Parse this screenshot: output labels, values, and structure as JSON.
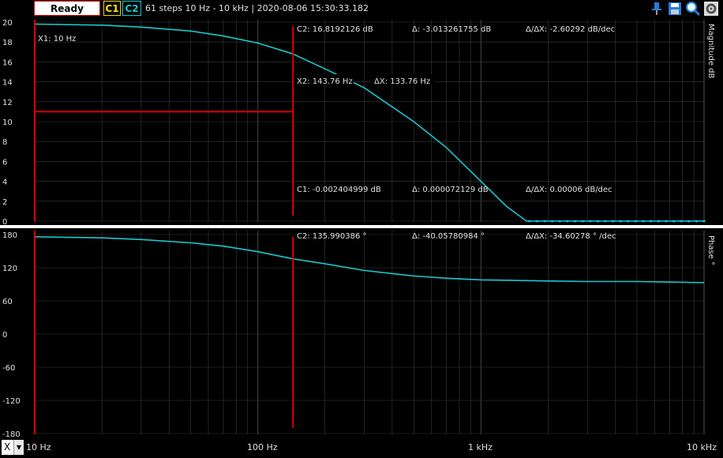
{
  "toolbar": {
    "status_label": "Ready",
    "c1_label": "C1",
    "c2_label": "C2",
    "info": "61 steps  10 Hz - 10 kHz | 2020-08-06 15:30:33.182",
    "icons": [
      "pin-icon",
      "save-icon",
      "zoom-icon",
      "settings-icon"
    ]
  },
  "magnitude_panel": {
    "axis_title": "Magnitude dB",
    "x1_label": "X1: 10 Hz",
    "x2_label": "X2: 143.76 Hz",
    "dx_label": "ΔX: 133.76 Hz",
    "c2_value": "C2: 16.8192126 dB",
    "c2_delta": "Δ: -3.013261755 dB",
    "c2_slope": "Δ/ΔX: -2.60292 dB/dec",
    "c1_value": "C1: -0.002404999 dB",
    "c1_delta": "Δ: 0.000072129 dB",
    "c1_slope": "Δ/ΔX: 0.00006 dB/dec",
    "y_ticks": [
      "20",
      "18",
      "16",
      "14",
      "12",
      "10",
      "8",
      "6",
      "4",
      "2",
      "0"
    ]
  },
  "phase_panel": {
    "axis_title": "Phase °",
    "c2_value": "C2: 135.990386 °",
    "c2_delta": "Δ: -40.05780984 °",
    "c2_slope": "Δ/ΔX: -34.60278 ° /dec",
    "y_ticks": [
      "180",
      "120",
      "60",
      "0",
      "-60",
      "-120",
      "-180"
    ]
  },
  "x_axis": {
    "selector_label": "X",
    "tick_labels": [
      "10 Hz",
      "100 Hz",
      "1 kHz",
      "10 kHz"
    ]
  },
  "colors": {
    "trace": "#19c8d0",
    "cursor": "#e00000",
    "c1": "#ffe800",
    "grid": "#3a3a3a"
  },
  "chart_data": [
    {
      "type": "line",
      "title": "",
      "ylabel": "Magnitude dB",
      "x_scale": "log",
      "xlim": [
        10,
        10000
      ],
      "ylim": [
        0,
        20
      ],
      "grid": true,
      "cursors": {
        "X1": 10,
        "X2": 143.76
      },
      "series": [
        {
          "name": "",
          "x": [
            10,
            20,
            30,
            50,
            70,
            100,
            143.76,
            200,
            300,
            500,
            700,
            1000,
            1300,
            1600,
            1650,
            2000,
            3000,
            5000,
            7000,
            10000
          ],
          "y": [
            19.8,
            19.7,
            19.5,
            19.1,
            18.6,
            17.9,
            16.8,
            15.3,
            13.4,
            10.0,
            7.4,
            4.0,
            1.5,
            0.0,
            0.0,
            0.0,
            0.0,
            0.0,
            0.0,
            0.0
          ]
        }
      ]
    },
    {
      "type": "line",
      "title": "",
      "ylabel": "Phase °",
      "x_scale": "log",
      "xlim": [
        10,
        10000
      ],
      "ylim": [
        -180,
        180
      ],
      "grid": true,
      "cursors": {
        "X1": 10,
        "X2": 143.76
      },
      "series": [
        {
          "name": "",
          "x": [
            10,
            20,
            30,
            50,
            70,
            100,
            143.76,
            200,
            300,
            500,
            700,
            1000,
            2000,
            3000,
            5000,
            7000,
            10000
          ],
          "y": [
            176,
            174,
            171,
            165,
            159,
            149,
            136,
            127,
            115,
            105,
            101,
            98,
            96,
            95,
            95,
            94,
            93
          ]
        }
      ]
    }
  ]
}
